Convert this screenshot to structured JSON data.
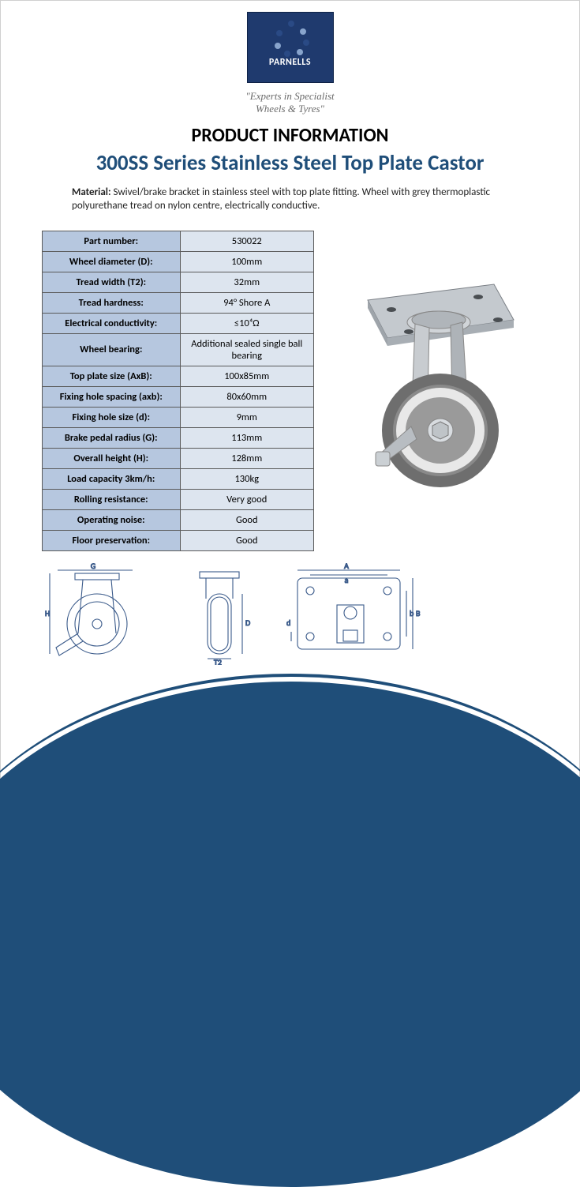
{
  "brand": {
    "name": "PARNELLS",
    "tagline_line1": "\"Experts in Specialist",
    "tagline_line2": "Wheels & Tyres\"",
    "logo_bg": "#1f3a6e",
    "logo_dot_dark": "#2a4a85",
    "logo_dot_light": "#88a4cc"
  },
  "headings": {
    "section": "PRODUCT INFORMATION",
    "product": "300SS Series Stainless Steel Top Plate Castor"
  },
  "material": {
    "label": "Material:",
    "text": "Swivel/brake bracket in stainless steel with top plate fitting. Wheel with grey thermoplastic polyurethane tread on nylon centre, electrically conductive."
  },
  "spec_table": {
    "header_bg": "#b6c7df",
    "value_bg": "#dde5ef",
    "border_color": "#5a5a5a",
    "rows": [
      {
        "k": "Part number:",
        "v": "530022"
      },
      {
        "k": "Wheel diameter (D):",
        "v": "100mm"
      },
      {
        "k": "Tread width (T2):",
        "v": "32mm"
      },
      {
        "k": "Tread hardness:",
        "v": "94° Shore A"
      },
      {
        "k": "Electrical conductivity:",
        "v": "≤10⁴Ω"
      },
      {
        "k": "Wheel bearing:",
        "v": "Additional sealed single ball bearing"
      },
      {
        "k": "Top plate size (AxB):",
        "v": "100x85mm"
      },
      {
        "k": "Fixing hole spacing (axb):",
        "v": "80x60mm"
      },
      {
        "k": "Fixing hole size (d):",
        "v": "9mm"
      },
      {
        "k": "Brake pedal radius (G):",
        "v": "113mm"
      },
      {
        "k": "Overall height (H):",
        "v": "128mm"
      },
      {
        "k": "Load capacity 3km/h:",
        "v": "130kg"
      },
      {
        "k": "Rolling resistance:",
        "v": "Very good"
      },
      {
        "k": "Operating noise:",
        "v": "Good"
      },
      {
        "k": "Floor preservation:",
        "v": "Good"
      }
    ]
  },
  "diagram_labels": {
    "G": "G",
    "H": "H",
    "D": "D",
    "T2": "T2",
    "A": "A",
    "a": "a",
    "b": "b",
    "B": "B",
    "d": "d"
  },
  "colors": {
    "title_blue": "#1f4e79",
    "arc_blue": "#1f4e79",
    "wheel_grey": "#7d7d7d",
    "wheel_light": "#cfcfcf",
    "steel": "#b8bec4"
  }
}
